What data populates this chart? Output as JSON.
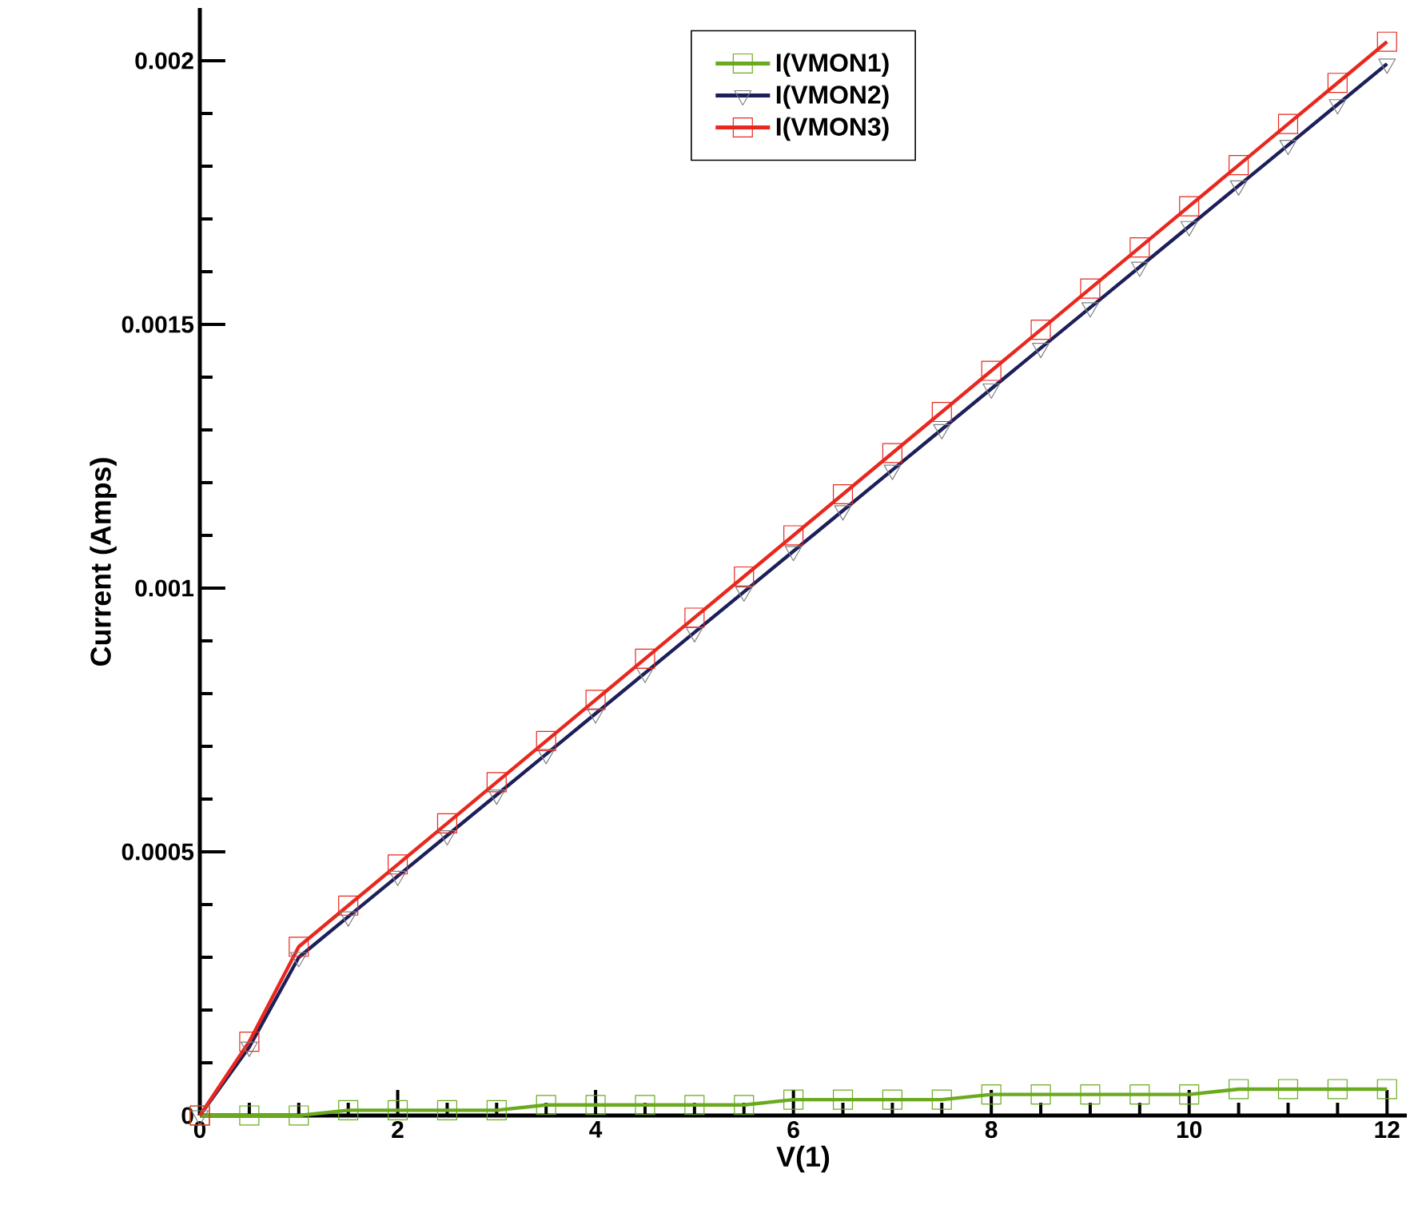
{
  "chart_data": {
    "type": "line",
    "xlabel": "V(1)",
    "ylabel": "Current (Amps)",
    "x": [
      0,
      0.5,
      1,
      1.5,
      2,
      2.5,
      3,
      3.5,
      4,
      4.5,
      5,
      5.5,
      6,
      6.5,
      7,
      7.5,
      8,
      8.5,
      9,
      9.5,
      10,
      10.5,
      11,
      11.5,
      12
    ],
    "series": [
      {
        "name": "I(VMON1)",
        "color": "#6aaa1e",
        "marker": "square",
        "values": [
          0,
          0,
          0,
          1e-05,
          1e-05,
          1e-05,
          1e-05,
          2e-05,
          2e-05,
          2e-05,
          2e-05,
          2e-05,
          3e-05,
          3e-05,
          3e-05,
          3e-05,
          4e-05,
          4e-05,
          4e-05,
          4e-05,
          4e-05,
          5e-05,
          5e-05,
          5e-05,
          5e-05
        ]
      },
      {
        "name": "I(VMON2)",
        "color": "#1c1f5a",
        "marker": "triangle",
        "values": [
          0,
          0.00013,
          0.0003,
          0.000377,
          0.000454,
          0.000531,
          0.000608,
          0.000685,
          0.000762,
          0.000839,
          0.000916,
          0.000993,
          0.00107,
          0.001147,
          0.001224,
          0.001301,
          0.001378,
          0.001455,
          0.001532,
          0.001609,
          0.001686,
          0.001763,
          0.00184,
          0.001917,
          0.001994
        ]
      },
      {
        "name": "I(VMON3)",
        "color": "#e8281e",
        "marker": "square",
        "values": [
          0,
          0.00014,
          0.00032,
          0.000398,
          0.000476,
          0.000554,
          0.000632,
          0.00071,
          0.000788,
          0.000866,
          0.000944,
          0.001022,
          0.0011,
          0.001178,
          0.001256,
          0.001334,
          0.001412,
          0.00149,
          0.001568,
          0.001646,
          0.001724,
          0.001802,
          0.00188,
          0.001958,
          0.002036
        ]
      }
    ],
    "xlim": [
      0,
      12.2
    ],
    "ylim": [
      0,
      0.0021
    ],
    "xticks": [
      0,
      2,
      4,
      6,
      8,
      10,
      12
    ],
    "yticks": [
      0,
      0.0005,
      0.001,
      0.0015,
      0.002
    ],
    "grid": false,
    "legend": "top",
    "line_style": "solid"
  }
}
